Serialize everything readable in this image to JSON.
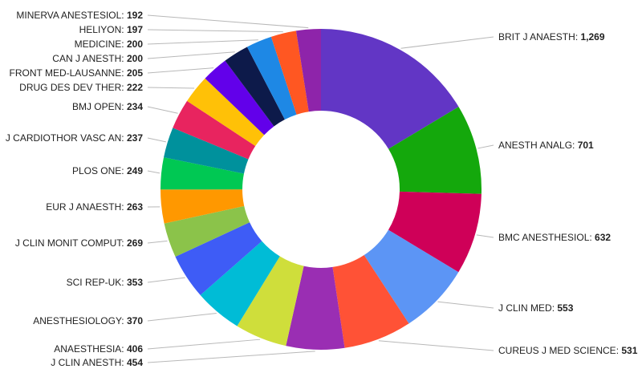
{
  "chart_data": {
    "type": "pie",
    "donut": true,
    "legend": "none",
    "title": "",
    "slices": [
      {
        "label": "BRIT J ANAESTH",
        "value": 1269,
        "value_text": "1,269",
        "color": "#6236c5"
      },
      {
        "label": "ANESTH ANALG",
        "value": 701,
        "value_text": "701",
        "color": "#14a80c"
      },
      {
        "label": "BMC ANESTHESIOL",
        "value": 632,
        "value_text": "632",
        "color": "#cf0058"
      },
      {
        "label": "J CLIN MED",
        "value": 553,
        "value_text": "553",
        "color": "#5c95f5"
      },
      {
        "label": "CUREUS J MED SCIENCE",
        "value": 531,
        "value_text": "531",
        "color": "#ff5236"
      },
      {
        "label": "J CLIN ANESTH",
        "value": 454,
        "value_text": "454",
        "color": "#9a2eb3"
      },
      {
        "label": "ANAESTHESIA",
        "value": 406,
        "value_text": "406",
        "color": "#cfde3b"
      },
      {
        "label": "ANESTHESIOLOGY",
        "value": 370,
        "value_text": "370",
        "color": "#00bcd6"
      },
      {
        "label": "SCI REP-UK",
        "value": 353,
        "value_text": "353",
        "color": "#3e5cf6"
      },
      {
        "label": "J CLIN MONIT COMPUT",
        "value": 269,
        "value_text": "269",
        "color": "#8bc34a"
      },
      {
        "label": "EUR J ANAESTH",
        "value": 263,
        "value_text": "263",
        "color": "#ff9800"
      },
      {
        "label": "PLOS ONE",
        "value": 249,
        "value_text": "249",
        "color": "#00c853"
      },
      {
        "label": "J CARDIOTHOR VASC AN",
        "value": 237,
        "value_text": "237",
        "color": "#00919c"
      },
      {
        "label": "BMJ OPEN",
        "value": 234,
        "value_text": "234",
        "color": "#e8245f"
      },
      {
        "label": "DRUG DES DEV THER",
        "value": 222,
        "value_text": "222",
        "color": "#ffc107"
      },
      {
        "label": "FRONT MED-LAUSANNE",
        "value": 205,
        "value_text": "205",
        "color": "#6200ea"
      },
      {
        "label": "CAN J ANESTH",
        "value": 200,
        "value_text": "200",
        "color": "#0d1a4a"
      },
      {
        "label": "MEDICINE",
        "value": 200,
        "value_text": "200",
        "color": "#1e88e5"
      },
      {
        "label": "HELIYON",
        "value": 197,
        "value_text": "197",
        "color": "#ff5722"
      },
      {
        "label": "MINERVA ANESTESIOL",
        "value": 192,
        "value_text": "192",
        "color": "#8e24aa"
      }
    ]
  }
}
